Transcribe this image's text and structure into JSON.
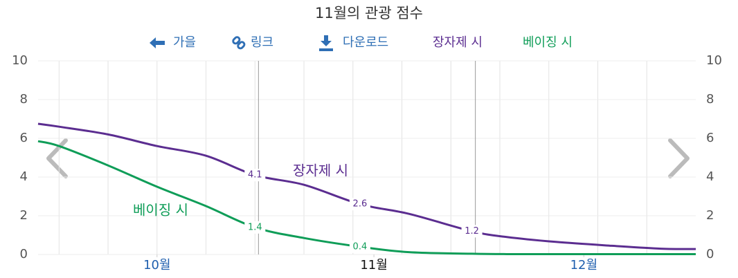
{
  "chart_data": {
    "type": "line",
    "title": "11월의 관광 점수",
    "toolbar": [
      "가을",
      "링크",
      "다운로드"
    ],
    "x": [
      -17,
      -14,
      -7,
      0,
      7,
      14,
      21,
      29,
      36,
      45,
      50,
      57,
      65,
      72,
      77
    ],
    "series": [
      {
        "name": "장자제 시",
        "color": "#5b2d90",
        "values": [
          6.75,
          6.6,
          6.2,
          5.6,
          5.1,
          4.1,
          3.6,
          2.6,
          2.1,
          1.2,
          0.9,
          0.65,
          0.45,
          0.3,
          0.28
        ],
        "labeled": [
          5,
          7,
          9
        ]
      },
      {
        "name": "베이징 시",
        "color": "#0f9d58",
        "values": [
          5.85,
          5.6,
          4.6,
          3.5,
          2.5,
          1.4,
          0.85,
          0.4,
          0.12,
          0.04,
          0.02,
          0.02,
          0.02,
          0.02,
          0.02
        ],
        "labeled": [
          5,
          7
        ]
      }
    ],
    "xlim": [
      -17,
      77
    ],
    "xticks": [
      {
        "value": 0,
        "label": "10월"
      },
      {
        "value": 31,
        "label": "11월"
      },
      {
        "value": 61,
        "label": "12월"
      }
    ],
    "current_xtick": 1,
    "xgrid": [
      -14,
      -7,
      0,
      7,
      14,
      21,
      28,
      35,
      42,
      49,
      56,
      63,
      70
    ],
    "reference_lines": [
      14.5,
      45.5
    ],
    "ylim": [
      0,
      10
    ],
    "yticks": [
      0,
      2,
      4,
      6,
      8,
      10
    ],
    "y2lim": [
      0,
      10
    ],
    "y2ticks": [
      0,
      2,
      4,
      6,
      8,
      10
    ],
    "grid": true
  }
}
